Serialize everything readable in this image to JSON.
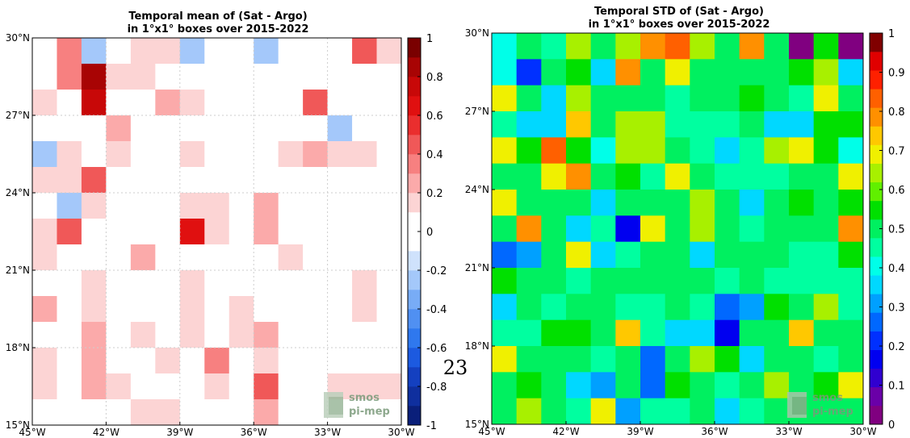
{
  "page_number": "23",
  "logo": {
    "line1": "smos",
    "line2": "pi-mep"
  },
  "chart_data": [
    {
      "type": "heatmap",
      "title": "Temporal mean of (Sat - Argo)",
      "subtitle": "in 1°x1° boxes over 2015-2022",
      "x_ticks": [
        "45°W",
        "42°W",
        "39°W",
        "36°W",
        "33°W",
        "30°W"
      ],
      "y_ticks": [
        "15°N",
        "18°N",
        "21°N",
        "24°N",
        "27°N",
        "30°N"
      ],
      "xlim": [
        -45,
        -30
      ],
      "ylim": [
        15,
        30
      ],
      "grid": true,
      "colorbar": {
        "range": [
          -1,
          1
        ],
        "ticks": [
          "1",
          "0.8",
          "0.6",
          "0.4",
          "0.2",
          "0",
          "-0.2",
          "-0.4",
          "-0.6",
          "-0.8",
          "-1"
        ],
        "colors": [
          "#0a1f7a",
          "#0f2f9e",
          "#1440c0",
          "#1c5ae0",
          "#2f78ee",
          "#5090f2",
          "#78acf6",
          "#a4c8fa",
          "#cfe2fc",
          "#ffffff",
          "#ffffff",
          "#fcd4d4",
          "#fbaaaa",
          "#f78080",
          "#f05858",
          "#ea2e2e",
          "#e01010",
          "#c80808",
          "#a80404",
          "#7a0000"
        ]
      },
      "rows_north_to_south": [
        [
          0,
          0.3,
          -0.3,
          0,
          0.1,
          0.1,
          -0.3,
          0,
          0,
          -0.3,
          0,
          0,
          0,
          0.4,
          0.1
        ],
        [
          0,
          0.3,
          0.8,
          0.1,
          0.1,
          0,
          0,
          0,
          0,
          0,
          0,
          -0.1,
          -0.1,
          0,
          0
        ],
        [
          0.1,
          0,
          0.7,
          -0.1,
          0,
          0.2,
          0.1,
          0,
          0,
          0,
          0,
          0.4,
          -0.1,
          0,
          -0.1
        ],
        [
          -0.1,
          -0.1,
          0,
          0.2,
          0,
          0,
          0,
          0,
          0,
          0,
          0,
          0,
          -0.3,
          0,
          -0.1
        ],
        [
          -0.3,
          0.1,
          0,
          0.1,
          0,
          0,
          0.1,
          0,
          -0.1,
          -0.1,
          0.1,
          0.2,
          0.1,
          0.1,
          0
        ],
        [
          0.1,
          0.1,
          0.4,
          -0.1,
          0,
          0,
          0,
          0,
          0,
          -0.1,
          0,
          0,
          0,
          0,
          0
        ],
        [
          0,
          -0.3,
          0.1,
          0,
          0,
          -0.1,
          0.1,
          0.1,
          0,
          0.2,
          0,
          0,
          -0.1,
          0,
          0
        ],
        [
          0.1,
          0.4,
          0,
          0,
          0,
          0,
          0.6,
          0.1,
          0,
          0.2,
          0,
          0,
          0,
          0,
          -0.1
        ],
        [
          0.1,
          0,
          0,
          -0.1,
          0.2,
          0,
          0,
          0,
          0,
          -0.1,
          0.1,
          0,
          0,
          0,
          -0.1
        ],
        [
          0,
          0,
          0.1,
          0,
          0,
          0,
          0.1,
          0,
          0,
          0,
          0,
          0,
          0,
          0.1,
          0
        ],
        [
          0.2,
          0,
          0.1,
          0,
          0,
          0,
          0.1,
          0,
          0.1,
          0,
          0,
          0,
          0,
          0.1,
          0
        ],
        [
          0,
          0,
          0.2,
          0,
          0.1,
          0,
          0.1,
          -0.1,
          0.1,
          0.2,
          0,
          0,
          0,
          0,
          0
        ],
        [
          0.1,
          0,
          0.2,
          0,
          0,
          0.1,
          0,
          0.3,
          0,
          0.1,
          0,
          0,
          0,
          0,
          0
        ],
        [
          0.1,
          0,
          0.2,
          0.1,
          0,
          0,
          0,
          0.1,
          0,
          0.4,
          0,
          0,
          0.1,
          0.1,
          0.1
        ],
        [
          0,
          -0.1,
          0,
          0,
          0.1,
          0.1,
          0,
          0,
          0,
          0.2,
          0,
          0,
          0,
          0,
          0
        ]
      ]
    },
    {
      "type": "heatmap",
      "title": "Temporal STD of (Sat - Argo)",
      "subtitle": "in 1°x1° boxes over 2015-2022",
      "x_ticks": [
        "45°W",
        "42°W",
        "39°W",
        "36°W",
        "33°W",
        "30°W"
      ],
      "y_ticks": [
        "15°N",
        "18°N",
        "21°N",
        "24°N",
        "27°N",
        "30°N"
      ],
      "xlim": [
        -45,
        -30
      ],
      "ylim": [
        15,
        30
      ],
      "grid": false,
      "colorbar": {
        "range": [
          0,
          1
        ],
        "ticks": [
          "1",
          "0.9",
          "0.8",
          "0.7",
          "0.6",
          "0.5",
          "0.4",
          "0.3",
          "0.2",
          "0.1",
          "0"
        ],
        "colors": [
          "#800080",
          "#6a00a8",
          "#3000d0",
          "#0000f0",
          "#0030ff",
          "#0068ff",
          "#00a0ff",
          "#00d8ff",
          "#00ffe8",
          "#00ffa0",
          "#00f060",
          "#00e000",
          "#60f000",
          "#a8f000",
          "#f0f000",
          "#ffc800",
          "#ff9000",
          "#ff6000",
          "#ff2000",
          "#e00000",
          "#800000"
        ]
      },
      "rows_north_to_south": [
        [
          0.42,
          0.52,
          0.45,
          0.62,
          0.52,
          0.62,
          0.77,
          0.82,
          0.62,
          0.52,
          0.77,
          0.52,
          0.0,
          0.55,
          0.02
        ],
        [
          0.42,
          0.22,
          0.52,
          0.55,
          0.38,
          0.77,
          0.52,
          0.67,
          0.52,
          0.52,
          0.52,
          0.52,
          0.57,
          0.62,
          0.38
        ],
        [
          0.67,
          0.52,
          0.37,
          0.62,
          0.52,
          0.52,
          0.52,
          0.45,
          0.52,
          0.52,
          0.55,
          0.52,
          0.47,
          0.67,
          0.52
        ],
        [
          0.45,
          0.38,
          0.38,
          0.72,
          0.52,
          0.62,
          0.62,
          0.45,
          0.45,
          0.45,
          0.52,
          0.38,
          0.38,
          0.55,
          0.55
        ],
        [
          0.67,
          0.55,
          0.82,
          0.55,
          0.42,
          0.62,
          0.62,
          0.52,
          0.45,
          0.38,
          0.45,
          0.62,
          0.67,
          0.55,
          0.42
        ],
        [
          0.52,
          0.52,
          0.67,
          0.77,
          0.52,
          0.55,
          0.45,
          0.67,
          0.52,
          0.45,
          0.45,
          0.45,
          0.52,
          0.52,
          0.67
        ],
        [
          0.67,
          0.52,
          0.52,
          0.52,
          0.38,
          0.52,
          0.52,
          0.52,
          0.62,
          0.52,
          0.38,
          0.52,
          0.55,
          0.52,
          0.55
        ],
        [
          0.52,
          0.77,
          0.52,
          0.38,
          0.45,
          0.17,
          0.67,
          0.52,
          0.62,
          0.52,
          0.45,
          0.52,
          0.52,
          0.52,
          0.77
        ],
        [
          0.27,
          0.32,
          0.52,
          0.67,
          0.38,
          0.45,
          0.52,
          0.52,
          0.38,
          0.52,
          0.52,
          0.52,
          0.45,
          0.45,
          0.55
        ],
        [
          0.55,
          0.52,
          0.52,
          0.45,
          0.52,
          0.52,
          0.52,
          0.52,
          0.52,
          0.45,
          0.52,
          0.45,
          0.45,
          0.45,
          0.45
        ],
        [
          0.38,
          0.52,
          0.45,
          0.52,
          0.52,
          0.45,
          0.45,
          0.52,
          0.45,
          0.27,
          0.32,
          0.57,
          0.52,
          0.62,
          0.45
        ],
        [
          0.45,
          0.45,
          0.57,
          0.57,
          0.52,
          0.72,
          0.45,
          0.38,
          0.38,
          0.17,
          0.52,
          0.52,
          0.72,
          0.52,
          0.52
        ],
        [
          0.67,
          0.52,
          0.52,
          0.52,
          0.45,
          0.52,
          0.27,
          0.52,
          0.62,
          0.55,
          0.38,
          0.52,
          0.52,
          0.45,
          0.52
        ],
        [
          0.52,
          0.57,
          0.52,
          0.38,
          0.32,
          0.52,
          0.27,
          0.57,
          0.52,
          0.45,
          0.52,
          0.62,
          0.52,
          0.55,
          0.67
        ],
        [
          0.52,
          0.62,
          0.52,
          0.45,
          0.67,
          0.32,
          0.45,
          0.45,
          0.52,
          0.38,
          0.45,
          0.52,
          0.52,
          0.52,
          0.52
        ]
      ]
    }
  ]
}
